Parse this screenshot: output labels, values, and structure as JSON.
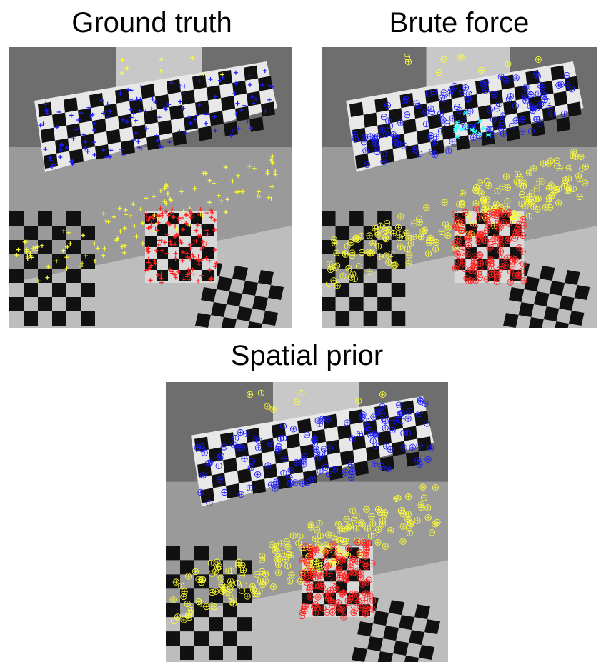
{
  "figure": {
    "panels": [
      {
        "id": "ground_truth",
        "title": "Ground truth",
        "marker": "plus"
      },
      {
        "id": "brute_force",
        "title": "Brute force",
        "marker": "circle-plus"
      },
      {
        "id": "spatial_prior",
        "title": "Spatial prior",
        "marker": "circle-plus"
      }
    ],
    "colors": {
      "blue_group": "#1a1aff",
      "yellow_group": "#ffff33",
      "red_group": "#ff2020",
      "mismatch": "#33ffff"
    },
    "scene": "grayscale photo of checkerboard calibration targets on a desk, with overlaid feature correspondences"
  }
}
